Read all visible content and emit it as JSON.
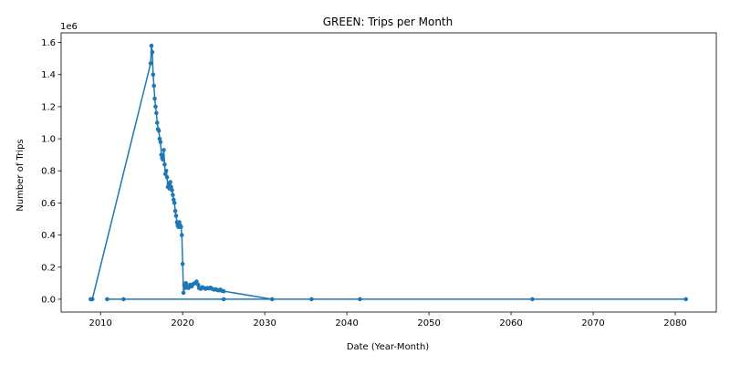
{
  "chart_data": {
    "type": "line",
    "title": "GREEN: Trips per Month",
    "xlabel": "Date (Year-Month)",
    "ylabel": "Number of Trips",
    "y_scale_label": "1e6",
    "xlim": [
      2005.2,
      2085.0
    ],
    "ylim": [
      -80000,
      1660000
    ],
    "x_ticks": [
      2010,
      2020,
      2030,
      2040,
      2050,
      2060,
      2070,
      2080
    ],
    "x_tick_labels": [
      "2010",
      "2020",
      "2030",
      "2040",
      "2050",
      "2060",
      "2070",
      "2080"
    ],
    "y_ticks": [
      0,
      200000,
      400000,
      600000,
      800000,
      1000000,
      1200000,
      1400000,
      1600000
    ],
    "y_tick_labels": [
      "0.0",
      "0.2",
      "0.4",
      "0.6",
      "0.8",
      "1.0",
      "1.2",
      "1.4",
      "1.6"
    ],
    "grid": false,
    "color": "#1f77b4",
    "series": [
      {
        "x": [
          2008.8,
          2009.0,
          2016.1,
          2016.2,
          2016.3,
          2016.4,
          2016.5,
          2016.6,
          2016.7,
          2016.8,
          2016.9,
          2017.0,
          2017.1,
          2017.2,
          2017.3,
          2017.4,
          2017.5,
          2017.6,
          2017.7,
          2017.8,
          2017.9,
          2018.0,
          2018.1,
          2018.2,
          2018.3,
          2018.4,
          2018.5,
          2018.6,
          2018.7,
          2018.8,
          2018.9,
          2019.0,
          2019.1,
          2019.2,
          2019.3,
          2019.4,
          2019.5,
          2019.6,
          2019.7,
          2019.8,
          2019.9,
          2020.0,
          2020.1,
          2020.2,
          2020.3,
          2020.4,
          2020.5,
          2020.7,
          2020.9,
          2021.1,
          2021.3,
          2021.5,
          2021.7,
          2021.9,
          2022.0,
          2022.2,
          2022.4,
          2022.6,
          2022.8,
          2023.0,
          2023.2,
          2023.4,
          2023.6,
          2023.8,
          2024.0,
          2024.2,
          2024.4,
          2024.6,
          2024.8,
          2025.0,
          2030.9,
          2010.8,
          2012.8,
          2025.0,
          2035.7,
          2041.6,
          2062.6,
          2081.3
        ],
        "y": [
          0,
          0,
          1470000,
          1580000,
          1540000,
          1400000,
          1330000,
          1250000,
          1200000,
          1160000,
          1100000,
          1060000,
          1050000,
          1000000,
          980000,
          900000,
          880000,
          870000,
          930000,
          840000,
          780000,
          800000,
          760000,
          700000,
          720000,
          690000,
          730000,
          700000,
          680000,
          650000,
          620000,
          600000,
          550000,
          520000,
          480000,
          460000,
          450000,
          480000,
          460000,
          450000,
          400000,
          220000,
          40000,
          90000,
          70000,
          100000,
          80000,
          70000,
          90000,
          80000,
          95000,
          100000,
          110000,
          90000,
          70000,
          65000,
          75000,
          70000,
          65000,
          70000,
          68000,
          72000,
          65000,
          60000,
          62000,
          58000,
          55000,
          60000,
          52000,
          50000,
          0,
          0,
          0,
          0,
          0,
          0,
          0,
          0
        ]
      }
    ]
  }
}
